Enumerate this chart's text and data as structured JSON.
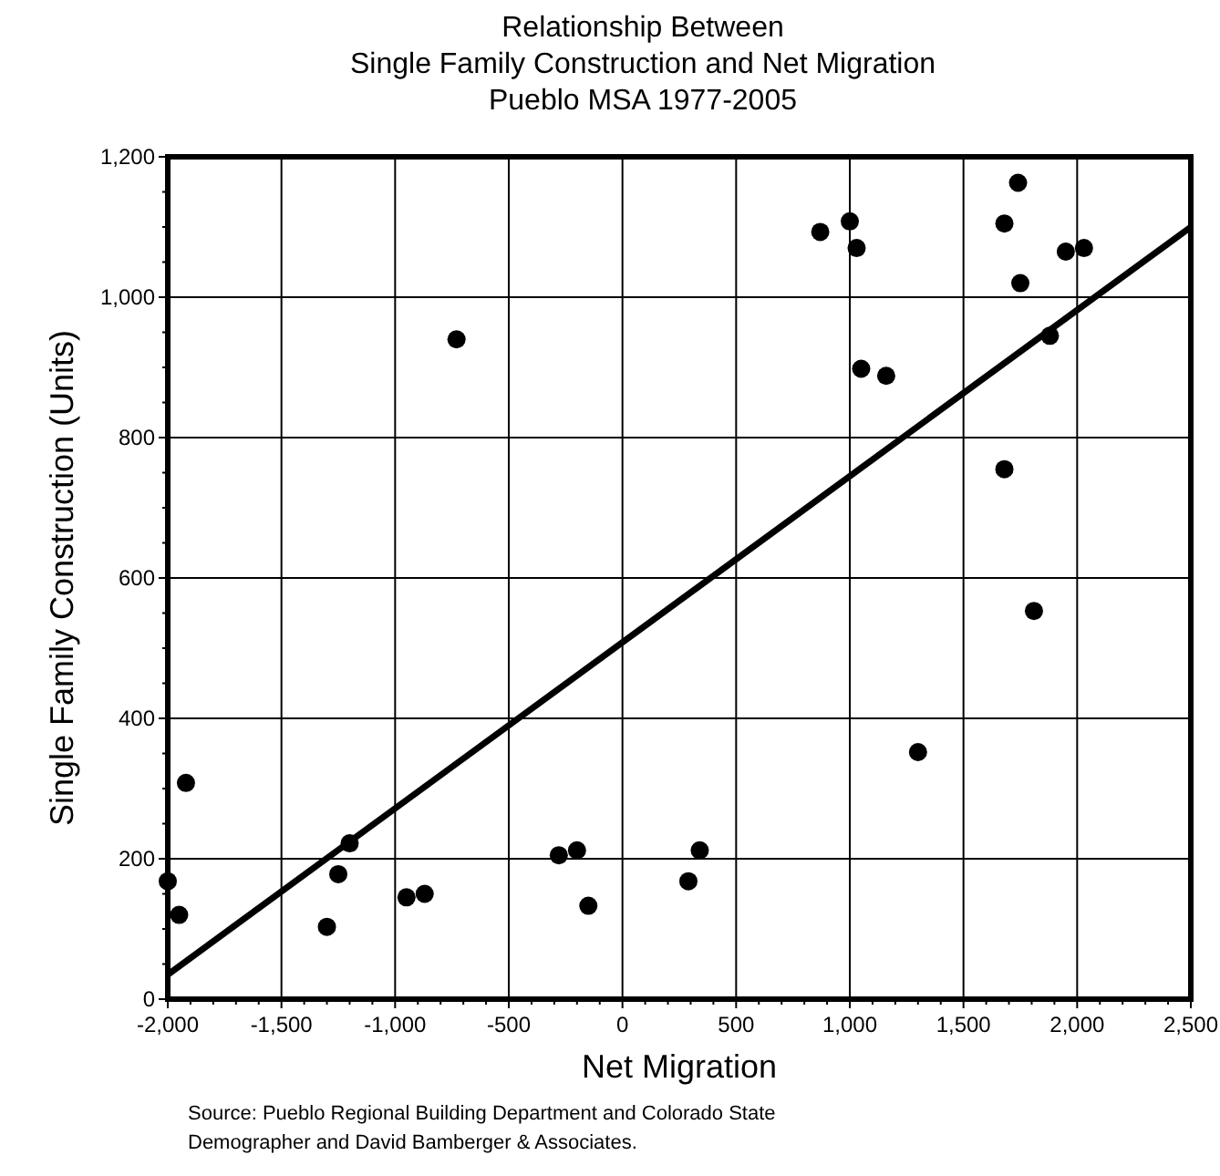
{
  "chart_data": {
    "type": "scatter",
    "title": "Relationship Between\nSingle Family Construction and Net Migration\nPueblo MSA 1977-2005",
    "xlabel": "Net Migration",
    "ylabel": "Single Family Construction (Units)",
    "annotations": [
      "Source: Pueblo Regional Building Department and Colorado State\nDemographer and David Bamberger & Associates."
    ],
    "xlim": [
      -2000,
      2500
    ],
    "xticks": [
      {
        "value": -2000,
        "label": "-2,000"
      },
      {
        "value": -1500,
        "label": "-1,500"
      },
      {
        "value": -1000,
        "label": "-1,000"
      },
      -500,
      0,
      500,
      {
        "value": 1000,
        "label": "1,000"
      },
      {
        "value": 1500,
        "label": "1,500"
      },
      {
        "value": 2000,
        "label": "2,000"
      },
      {
        "value": 2500,
        "label": "2,500"
      }
    ],
    "ylim": [
      0,
      1200
    ],
    "yticks": [
      0,
      200,
      400,
      600,
      800,
      {
        "value": 1000,
        "label": "1,000"
      },
      {
        "value": 1200,
        "label": "1,200"
      }
    ],
    "grid": true,
    "series": [
      {
        "color": "#000000",
        "marker": "circle",
        "x": [
          -2000,
          -1950,
          -1920,
          -1300,
          -1250,
          -1200,
          -950,
          -870,
          -730,
          -280,
          -200,
          -150,
          290,
          340,
          870,
          1000,
          1030,
          1050,
          1160,
          1300,
          1680,
          1680,
          1740,
          1750,
          1810,
          1880,
          1950,
          2030
        ],
        "values": [
          168,
          120,
          308,
          103,
          178,
          222,
          145,
          150,
          940,
          205,
          212,
          133,
          168,
          212,
          1093,
          1108,
          1070,
          898,
          888,
          352,
          1105,
          755,
          1163,
          1020,
          553,
          945,
          1065,
          1070
        ]
      },
      {
        "type": "line",
        "color": "#000000",
        "marker": "none",
        "line_style": "solid",
        "x": [
          -2000,
          2500
        ],
        "values": [
          35,
          1100
        ]
      }
    ]
  }
}
